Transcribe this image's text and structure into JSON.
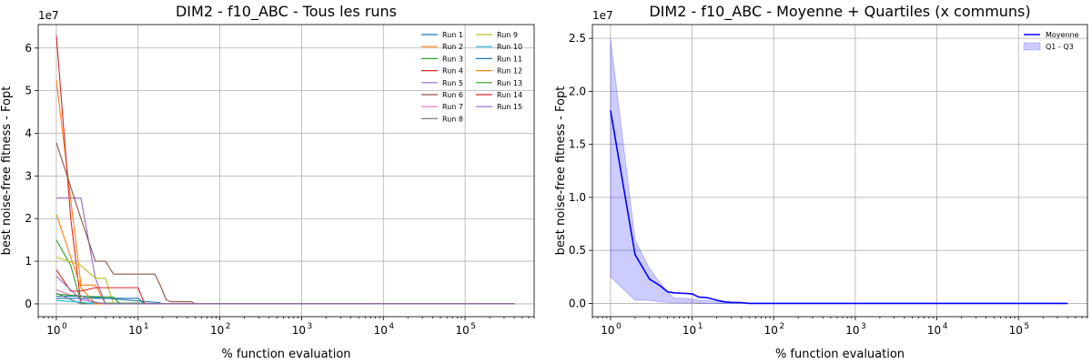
{
  "chart_data": [
    {
      "type": "line",
      "title": "DIM2 - f10_ABC - Tous les runs",
      "xlabel": "% function evaluation",
      "ylabel": "best noise-free fitness - Fopt",
      "xscale": "log",
      "xlim": [
        0.6,
        700000
      ],
      "ylim": [
        -3000000,
        65500000
      ],
      "y_multiplier": "1e7",
      "xticks": [
        1,
        10,
        100,
        1000,
        10000,
        100000
      ],
      "xtick_labels": [
        "10^0",
        "10^1",
        "10^2",
        "10^3",
        "10^4",
        "10^5"
      ],
      "yticks": [
        0,
        10000000,
        20000000,
        30000000,
        40000000,
        50000000,
        60000000
      ],
      "ytick_labels": [
        "0",
        "1",
        "2",
        "3",
        "4",
        "5",
        "6"
      ],
      "grid": true,
      "legend_position": "top-right",
      "legend_columns": 2,
      "series": [
        {
          "name": "Run 1",
          "color": "#1f77b4",
          "x": [
            1,
            2,
            18,
            20,
            400000
          ],
          "y": [
            1800000,
            1800000,
            300000,
            0,
            0
          ]
        },
        {
          "name": "Run 2",
          "color": "#ff7f0e",
          "x": [
            1,
            2,
            3,
            4,
            400000
          ],
          "y": [
            52500000,
            4400000,
            4400000,
            0,
            0
          ]
        },
        {
          "name": "Run 3",
          "color": "#2ca02c",
          "x": [
            1,
            1.5,
            2,
            10,
            20,
            400000
          ],
          "y": [
            15000000,
            9000000,
            200000,
            200000,
            0,
            0
          ]
        },
        {
          "name": "Run 4",
          "color": "#d62728",
          "x": [
            1,
            1.5,
            2,
            400000
          ],
          "y": [
            63000000,
            20000000,
            0,
            0
          ]
        },
        {
          "name": "Run 5",
          "color": "#9467bd",
          "x": [
            1,
            2,
            3,
            4,
            400000
          ],
          "y": [
            24800000,
            24800000,
            6000000,
            0,
            0
          ]
        },
        {
          "name": "Run 6",
          "color": "#8c564b",
          "x": [
            1,
            2,
            3,
            4,
            5,
            6,
            16,
            18,
            20,
            22,
            25,
            45,
            50,
            400000
          ],
          "y": [
            37800000,
            20000000,
            10000000,
            10000000,
            7000000,
            7000000,
            7000000,
            5000000,
            3000000,
            1000000,
            500000,
            500000,
            0,
            0
          ]
        },
        {
          "name": "Run 7",
          "color": "#e377c2",
          "x": [
            1,
            1.5,
            2,
            3,
            400000
          ],
          "y": [
            3300000,
            2000000,
            2000000,
            0,
            0
          ]
        },
        {
          "name": "Run 8",
          "color": "#7f7f7f",
          "x": [
            1,
            2,
            400000
          ],
          "y": [
            2500000,
            0,
            0
          ]
        },
        {
          "name": "Run 9",
          "color": "#bcbd22",
          "x": [
            1,
            2,
            3,
            4,
            5,
            400000
          ],
          "y": [
            11000000,
            9000000,
            6000000,
            6000000,
            0,
            0
          ]
        },
        {
          "name": "Run 10",
          "color": "#17becf",
          "x": [
            1,
            2,
            3,
            400000
          ],
          "y": [
            800000,
            400000,
            0,
            0
          ]
        },
        {
          "name": "Run 11",
          "color": "#1f77b4",
          "x": [
            1,
            2,
            10,
            12,
            400000
          ],
          "y": [
            1300000,
            1300000,
            1300000,
            0,
            0
          ]
        },
        {
          "name": "Run 12",
          "color": "#ff7f0e",
          "x": [
            1,
            2,
            3,
            400000
          ],
          "y": [
            21000000,
            3800000,
            0,
            0
          ]
        },
        {
          "name": "Run 13",
          "color": "#2ca02c",
          "x": [
            1,
            2,
            5,
            6,
            400000
          ],
          "y": [
            2300000,
            1800000,
            1600000,
            0,
            0
          ]
        },
        {
          "name": "Run 14",
          "color": "#d62728",
          "x": [
            1,
            1.5,
            2,
            3,
            10,
            12,
            400000
          ],
          "y": [
            8000000,
            3000000,
            3000000,
            3800000,
            3800000,
            0,
            0
          ]
        },
        {
          "name": "Run 15",
          "color": "#9467bd",
          "x": [
            1,
            2,
            4,
            400000
          ],
          "y": [
            6500000,
            1000000,
            0,
            0
          ]
        }
      ]
    },
    {
      "type": "line",
      "title": "DIM2 - f10_ABC  - Moyenne + Quartiles (x communs)",
      "xlabel": "% function evaluation",
      "ylabel": "best noise-free fitness - Fopt",
      "xscale": "log",
      "xlim": [
        0.6,
        700000
      ],
      "ylim": [
        -1250000,
        26300000
      ],
      "y_multiplier": "1e7",
      "xticks": [
        1,
        10,
        100,
        1000,
        10000,
        100000
      ],
      "xtick_labels": [
        "10^0",
        "10^1",
        "10^2",
        "10^3",
        "10^4",
        "10^5"
      ],
      "yticks": [
        0,
        5000000,
        10000000,
        15000000,
        20000000,
        25000000
      ],
      "ytick_labels": [
        "0.0",
        "0.5",
        "1.0",
        "1.5",
        "2.0",
        "2.5"
      ],
      "grid": true,
      "legend_position": "top-right",
      "series": [
        {
          "name": "Moyenne",
          "color": "#0000ff",
          "x": [
            1,
            2,
            3,
            4,
            5,
            6,
            8,
            10,
            12,
            15,
            18,
            20,
            25,
            30,
            40,
            50,
            100,
            1000,
            10000,
            100000,
            400000
          ],
          "y": [
            18200000,
            4600000,
            2300000,
            1700000,
            1100000,
            1000000,
            950000,
            900000,
            600000,
            550000,
            400000,
            300000,
            150000,
            100000,
            80000,
            0,
            0,
            0,
            0,
            0,
            0
          ]
        }
      ],
      "band": {
        "name": "Q1 - Q3",
        "color": "#0000ff",
        "opacity": 0.2,
        "x": [
          1,
          2,
          3,
          4,
          5,
          6,
          8,
          10,
          12,
          15,
          18,
          20,
          25,
          30,
          40,
          50,
          100,
          1000,
          10000,
          100000,
          400000
        ],
        "upper": [
          25000000,
          6000000,
          3300000,
          2000000,
          1100000,
          500000,
          500000,
          400000,
          300000,
          300000,
          200000,
          150000,
          100000,
          50000,
          20000,
          0,
          0,
          0,
          0,
          0,
          0
        ],
        "lower": [
          2500000,
          300000,
          300000,
          150000,
          100000,
          50000,
          50000,
          50000,
          0,
          0,
          0,
          0,
          0,
          0,
          0,
          0,
          0,
          0,
          0,
          0,
          0
        ]
      }
    }
  ]
}
